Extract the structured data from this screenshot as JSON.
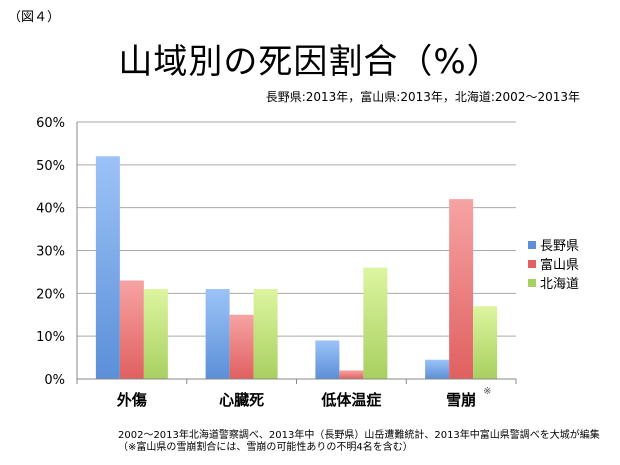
{
  "figure_label": "（図４）",
  "chart_data": {
    "type": "bar",
    "title": "山域別の死因割合（%）",
    "subtitle": "長野県:2013年，富山県:2013年，北海道:2002〜2013年",
    "categories": [
      "外傷",
      "心臓死",
      "低体温症",
      "雪崩"
    ],
    "category_marks": [
      "",
      "",
      "",
      "※"
    ],
    "series": [
      {
        "name": "長野県",
        "color": "#5b8fd8",
        "values": [
          52,
          21,
          9,
          4.5
        ]
      },
      {
        "name": "富山県",
        "color": "#e06060",
        "values": [
          23,
          15,
          2,
          42
        ]
      },
      {
        "name": "北海道",
        "color": "#a8d060",
        "values": [
          21,
          21,
          26,
          17
        ]
      }
    ],
    "ylim": [
      0,
      60
    ],
    "yticks": [
      "0%",
      "10%",
      "20%",
      "30%",
      "40%",
      "50%",
      "60%"
    ],
    "grid": true,
    "legend": "right"
  },
  "notes": [
    "2002〜2013年北海道警察調べ、2013年中（長野県）山岳遭難統計、2013年中富山県警調べを大城が編集",
    "（※富山県の雪崩割合には、雪崩の可能性ありの不明4名を含む）"
  ]
}
